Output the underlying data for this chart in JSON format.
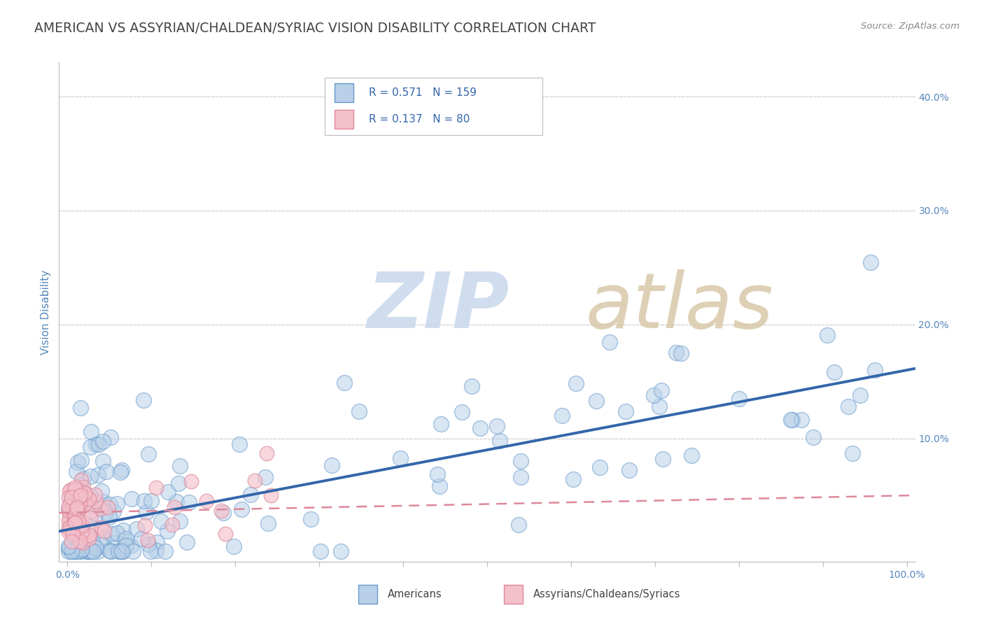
{
  "title": "AMERICAN VS ASSYRIAN/CHALDEAN/SYRIAC VISION DISABILITY CORRELATION CHART",
  "source": "Source: ZipAtlas.com",
  "ylabel": "Vision Disability",
  "xlim": [
    -0.01,
    1.01
  ],
  "ylim": [
    -0.008,
    0.43
  ],
  "xticks": [
    0.0,
    0.1,
    0.2,
    0.3,
    0.4,
    0.5,
    0.6,
    0.7,
    0.8,
    0.9,
    1.0
  ],
  "xticklabels": [
    "0.0%",
    "",
    "",
    "",
    "",
    "",
    "",
    "",
    "",
    "",
    "100.0%"
  ],
  "yticks": [
    0.0,
    0.1,
    0.2,
    0.3,
    0.4
  ],
  "yticklabels": [
    "",
    "10.0%",
    "20.0%",
    "30.0%",
    "40.0%"
  ],
  "blue_R": 0.571,
  "blue_N": 159,
  "pink_R": 0.137,
  "pink_N": 80,
  "blue_fill": "#b8d0e8",
  "blue_edge": "#6699cc",
  "pink_fill": "#f4c0cc",
  "pink_edge": "#dd8899",
  "blue_line_color": "#3366aa",
  "pink_line_color": "#dd8899",
  "watermark_zip_color": "#c8d8ec",
  "watermark_atlas_color": "#d8c8a8",
  "background_color": "#ffffff",
  "title_color": "#444444",
  "source_color": "#888888",
  "tick_color": "#5588bb",
  "grid_color": "#cccccc",
  "legend_text_color": "#3366aa"
}
